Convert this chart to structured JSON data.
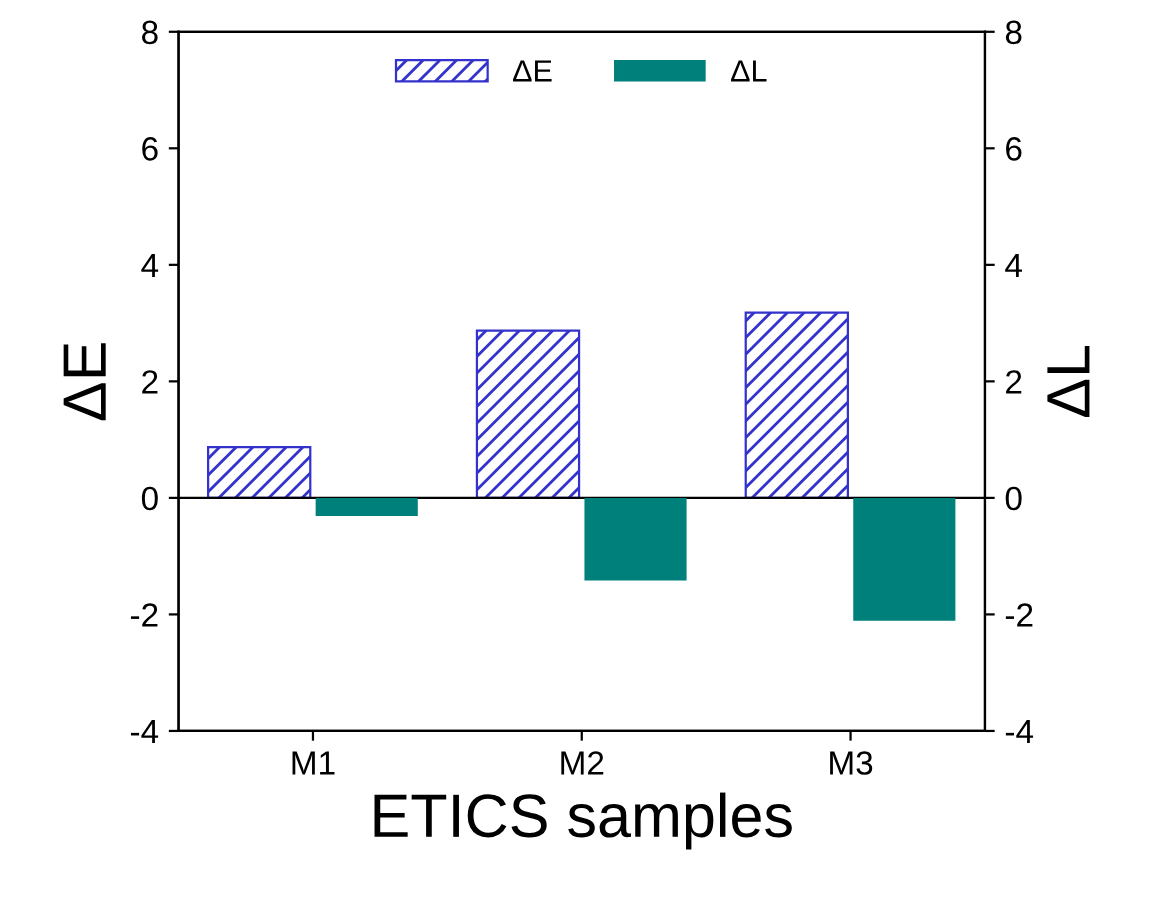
{
  "chart_data": {
    "type": "bar",
    "xlabel": "ETICS samples",
    "ylabel": "ΔE",
    "y2label": "ΔL",
    "categories": [
      "M1",
      "M2",
      "M3"
    ],
    "series": [
      {
        "name": "ΔE",
        "color": "#3333cc",
        "values": [
          0.87,
          2.87,
          3.18
        ]
      },
      {
        "name": "ΔL",
        "color": "#00807a",
        "values": [
          -0.31,
          -1.42,
          -2.11
        ],
        "axis": "y2"
      }
    ],
    "ylim": [
      -4,
      8
    ],
    "yticks": [
      -4,
      -2,
      0,
      2,
      4,
      6,
      8
    ],
    "y2lim": [
      -4,
      8
    ],
    "y2ticks": [
      -4,
      -2,
      0,
      2,
      4,
      6,
      8
    ],
    "ref_lines": [
      {
        "axis": "y",
        "value": 0,
        "color": "#000000"
      }
    ],
    "legend": "top",
    "grid": false
  }
}
